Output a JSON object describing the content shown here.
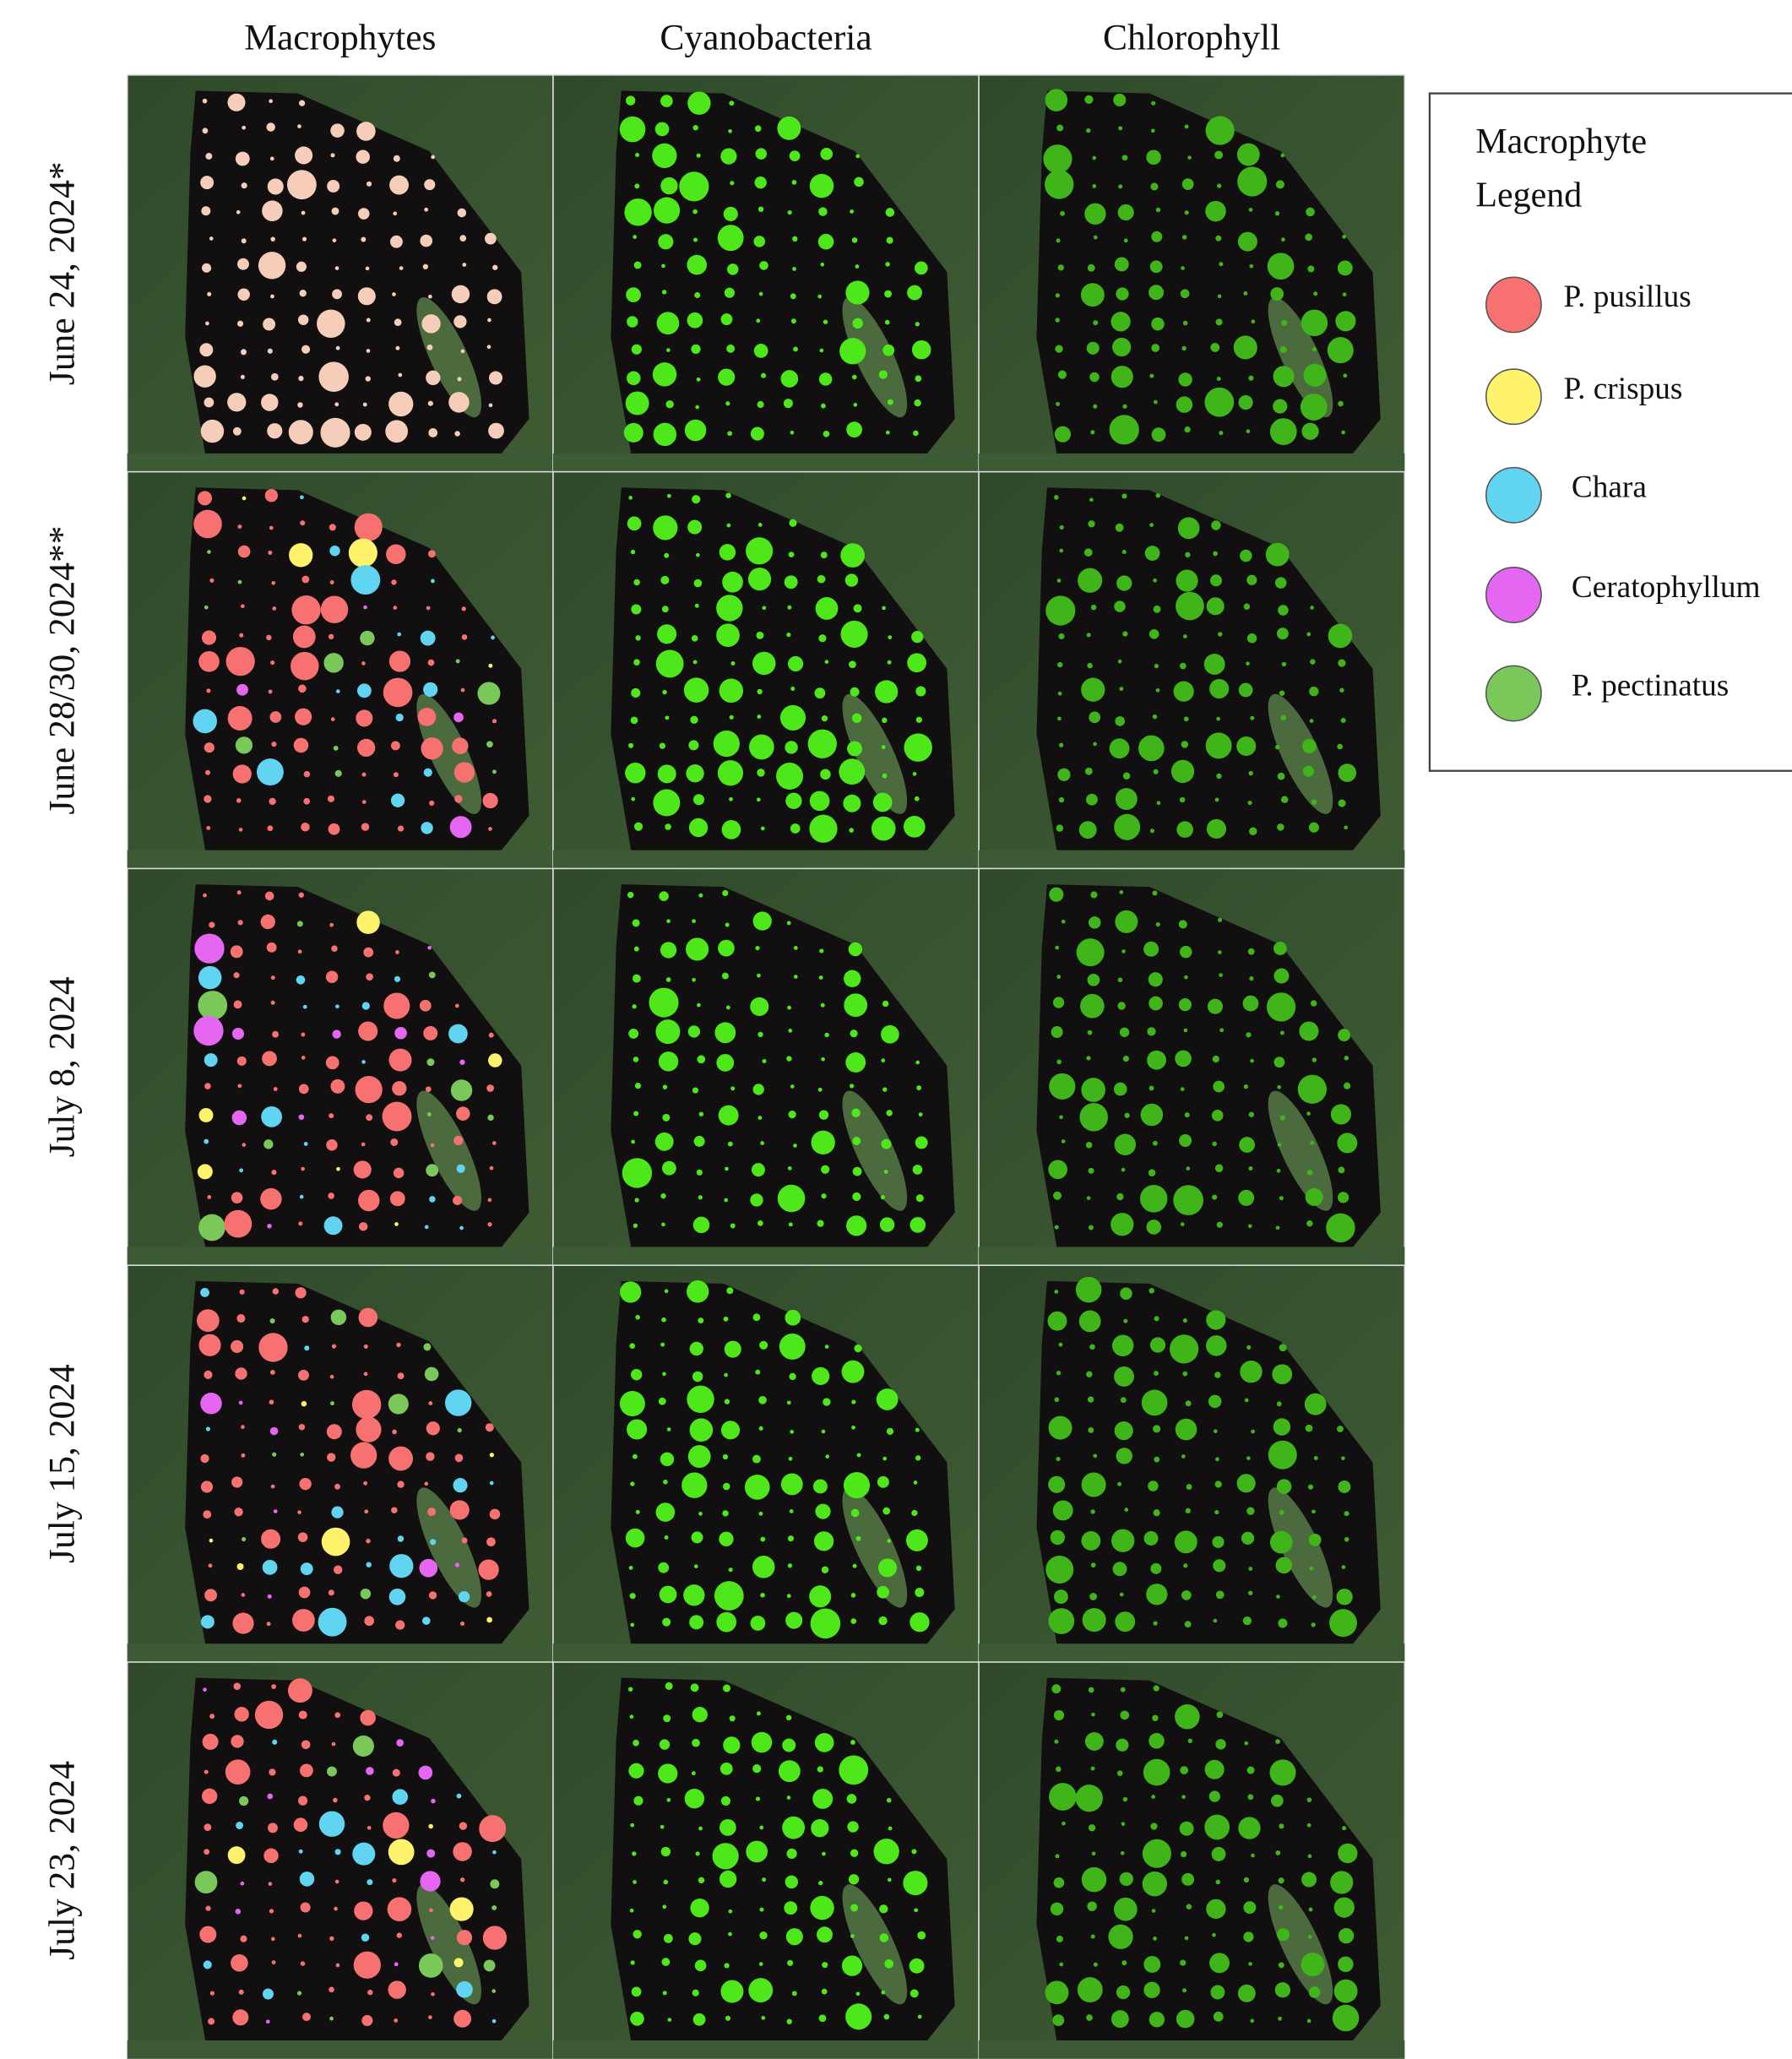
{
  "header": {
    "columns": [
      "Macrophytes",
      "Cyanobacteria",
      "Chlorophyll"
    ]
  },
  "rows": [
    "June 24, 2024*",
    "June 28/30, 2024**",
    "July 8, 2024",
    "July 15, 2024",
    "July 23, 2024"
  ],
  "legend": {
    "title_lines": [
      "Macrophyte",
      "Legend"
    ],
    "items": [
      {
        "label": "P. pusillus",
        "color": "#f87171"
      },
      {
        "label": "P. crispus",
        "color": "#fef36a"
      },
      {
        "label": "Chara",
        "color": "#60d4f0"
      },
      {
        "label": "Ceratophyllum",
        "color": "#e566f0"
      },
      {
        "label": "P. pectinatus",
        "color": "#7bc85a"
      }
    ]
  }
}
